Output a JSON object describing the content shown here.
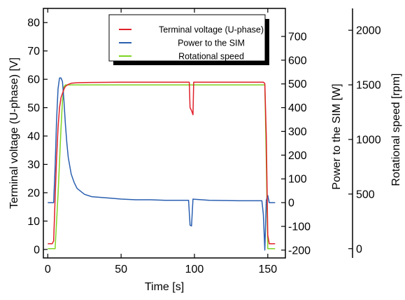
{
  "chart_data": {
    "type": "line",
    "xlabel": "Time [s]",
    "xlim": [
      -3,
      162
    ],
    "xticks": [
      0,
      50,
      100,
      150
    ],
    "axes": {
      "left": {
        "label": "Terminal voltage (U-phase) [V]",
        "lim": [
          -3,
          85
        ],
        "ticks": [
          0,
          10,
          20,
          30,
          40,
          50,
          60,
          70,
          80
        ]
      },
      "right1": {
        "label": "Power to the SIM [W]",
        "lim": [
          -233,
          818
        ],
        "ticks": [
          -200,
          -100,
          0,
          100,
          200,
          300,
          400,
          500,
          600,
          700
        ]
      },
      "right2": {
        "label": "Rotational speed [rpm]",
        "lim": [
          -85,
          2200
        ],
        "ticks": [
          0,
          500,
          1000,
          1500,
          2000
        ]
      }
    },
    "legend_position": "top-right",
    "series": [
      {
        "name": "Terminal voltage (U-phase)",
        "axis": "left",
        "color": "#e0202a",
        "x": [
          0,
          3,
          4,
          5,
          6,
          7,
          8,
          9,
          10,
          11,
          12,
          14,
          16,
          20,
          30,
          50,
          80,
          96.5,
          97,
          98,
          99,
          99.5,
          100,
          110,
          130,
          147,
          148,
          149,
          150,
          151,
          155
        ],
        "y": [
          2,
          2,
          3,
          18,
          32,
          43,
          50,
          53.5,
          55,
          56.5,
          57.5,
          58.2,
          58.6,
          58.8,
          58.9,
          59,
          59,
          59,
          50,
          49,
          47.5,
          59,
          59,
          59,
          59,
          59,
          58.5,
          40,
          5,
          2,
          2
        ]
      },
      {
        "name": "Power to the SIM",
        "axis": "right1",
        "color": "#2a5fb0",
        "x": [
          0,
          4,
          5,
          6,
          7,
          8,
          9,
          10,
          11,
          12,
          13,
          14,
          16,
          18,
          20,
          25,
          30,
          40,
          50,
          60,
          70,
          80,
          96,
          97,
          98,
          99,
          100,
          110,
          130,
          146,
          147,
          148,
          149,
          150,
          151,
          155
        ],
        "y": [
          0,
          0,
          150,
          350,
          480,
          525,
          525,
          510,
          430,
          330,
          250,
          190,
          120,
          85,
          60,
          35,
          25,
          20,
          15,
          12,
          12,
          10,
          10,
          -95,
          -98,
          15,
          14,
          10,
          8,
          8,
          -50,
          -200,
          10,
          30,
          0,
          0
        ]
      },
      {
        "name": "Rotational speed",
        "axis": "right2",
        "color": "#7ed321",
        "x": [
          0,
          5,
          6,
          7,
          8,
          9,
          10,
          11,
          12,
          100,
          148,
          149,
          150,
          153,
          155
        ],
        "y": [
          0,
          0,
          250,
          500,
          800,
          1100,
          1350,
          1480,
          1500,
          1500,
          1500,
          800,
          0,
          0,
          0
        ]
      }
    ]
  }
}
